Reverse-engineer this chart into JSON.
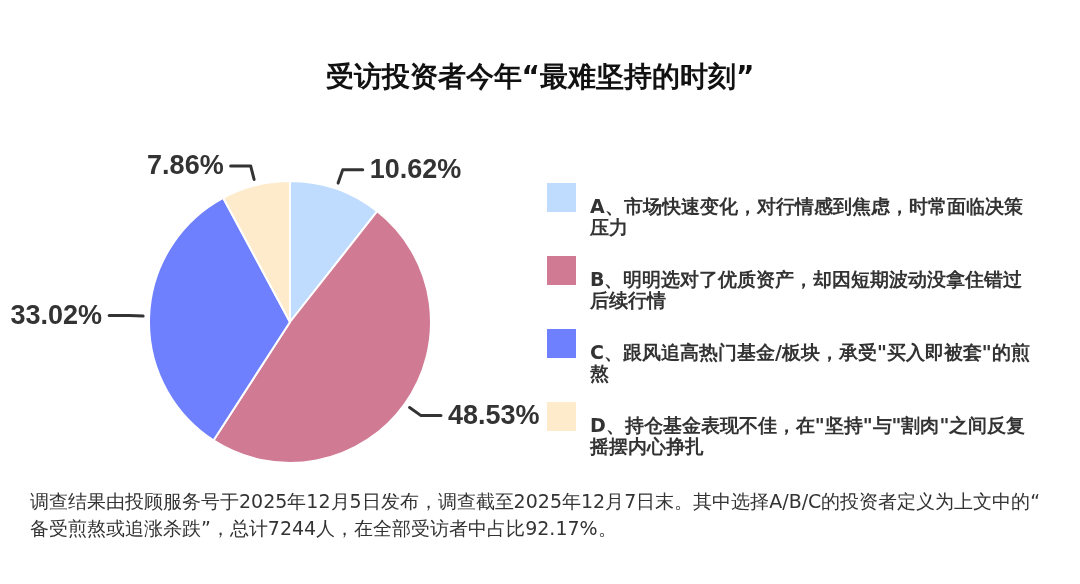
{
  "chart_data": {
    "type": "pie",
    "title": "受访投资者今年“最难坚持的时刻”",
    "categories": [
      "A、市场快速变化，对行情感到焦虑，时常面临决策压力",
      "B、明明选对了优质资产，却因短期波动没拿住错过后续行情",
      "C、跟风追高热门基金/板块，承受\"买入即被套\"的煎熬",
      "D、持仓基金表现不佳，在\"坚持\"与\"割肉\"之间反复摇摆内心挣扎"
    ],
    "values": [
      10.62,
      48.53,
      33.02,
      7.86
    ],
    "colors": [
      "#bfdcfe",
      "#d07a93",
      "#6e80fe",
      "#fdebcc"
    ],
    "value_labels": [
      "10.62%",
      "48.53%",
      "33.02%",
      "7.86%"
    ],
    "legend": "right",
    "annotations": [
      "调查结果由投顾服务号于2025年12月5日发布，调查截至2025年12月7日末。其中选择A/B/C的投资者定义为上文中的“备受煎熬或追涨杀跌”，总计7244人，在全部受访者中占比92.17%。"
    ]
  }
}
